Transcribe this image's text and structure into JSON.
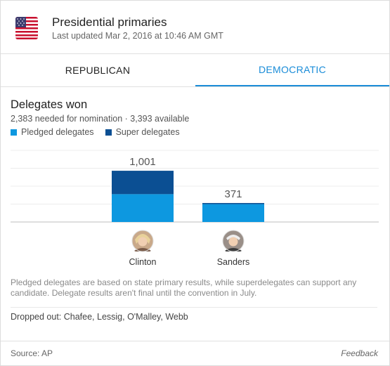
{
  "header": {
    "title": "Presidential primaries",
    "updated": "Last updated Mar 2, 2016 at 10:46 AM GMT"
  },
  "tabs": [
    {
      "label": "REPUBLICAN",
      "active": false
    },
    {
      "label": "DEMOCRATIC",
      "active": true
    }
  ],
  "section": {
    "title": "Delegates won",
    "subtitle": "2,383 needed for nomination · 3,393 available"
  },
  "legend": {
    "pledged": "Pledged delegates",
    "super": "Super delegates"
  },
  "colors": {
    "pledged": "#0d98e0",
    "super": "#0b4f93",
    "accent": "#1a8cd8"
  },
  "chart_data": {
    "type": "bar",
    "stacked": true,
    "categories": [
      "Clinton",
      "Sanders"
    ],
    "series": [
      {
        "name": "Pledged delegates",
        "values": [
          544,
          349
        ]
      },
      {
        "name": "Super delegates",
        "values": [
          457,
          22
        ]
      }
    ],
    "totals": [
      "1,001",
      "371"
    ],
    "ylim": [
      0,
      1400
    ],
    "grid": true
  },
  "note": "Pledged delegates are based on state primary results, while superdelegates can support any candidate. Delegate results aren't final until the convention in July.",
  "dropped": "Dropped out: Chafee, Lessig, O'Malley, Webb",
  "footer": {
    "source": "Source: AP",
    "feedback": "Feedback"
  }
}
